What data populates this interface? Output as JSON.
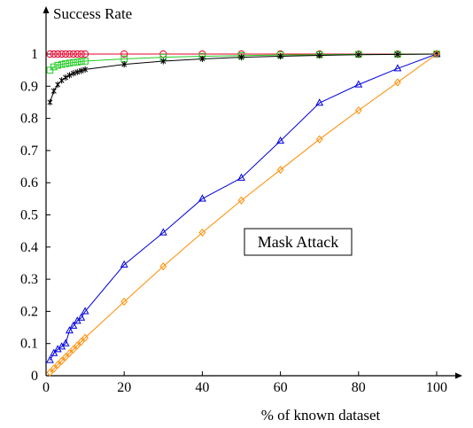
{
  "chart_data": {
    "type": "line",
    "title": "",
    "xlabel": "% of known dataset",
    "ylabel": "Success Rate",
    "xlim": [
      0,
      100
    ],
    "ylim": [
      0,
      1
    ],
    "x_ticks": [
      "0",
      "20",
      "40",
      "60",
      "80",
      "100"
    ],
    "y_ticks": [
      "0",
      "0.1",
      "0.2",
      "0.3",
      "0.4",
      "0.5",
      "0.6",
      "0.7",
      "0.8",
      "0.9",
      "1"
    ],
    "grid": false,
    "legend": "none",
    "annotation": "Mask Attack",
    "series": [
      {
        "marker": "circle",
        "color": "#e8002a",
        "x": [
          1,
          2,
          3,
          4,
          5,
          6,
          7,
          8,
          9,
          10,
          20,
          30,
          40,
          50,
          60,
          70,
          80,
          90,
          100
        ],
        "y": [
          1.0,
          1.0,
          1.0,
          1.0,
          1.0,
          1.0,
          1.0,
          1.0,
          1.0,
          1.0,
          1.0,
          1.0,
          1.0,
          1.0,
          1.0,
          1.0,
          1.0,
          1.0,
          1.0
        ]
      },
      {
        "marker": "square",
        "color": "#22cc22",
        "x": [
          1,
          2,
          3,
          4,
          5,
          6,
          7,
          8,
          9,
          10,
          20,
          30,
          40,
          50,
          60,
          70,
          80,
          90,
          100
        ],
        "y": [
          0.95,
          0.96,
          0.965,
          0.968,
          0.97,
          0.972,
          0.974,
          0.975,
          0.977,
          0.978,
          0.985,
          0.99,
          0.993,
          0.995,
          0.997,
          0.998,
          0.999,
          0.999,
          1.0
        ]
      },
      {
        "marker": "star",
        "color": "#000000",
        "x": [
          1,
          2,
          3,
          4,
          5,
          6,
          7,
          8,
          9,
          10,
          20,
          30,
          40,
          50,
          60,
          70,
          80,
          90,
          100
        ],
        "y": [
          0.85,
          0.885,
          0.905,
          0.918,
          0.927,
          0.934,
          0.94,
          0.944,
          0.948,
          0.952,
          0.968,
          0.978,
          0.985,
          0.99,
          0.993,
          0.996,
          0.998,
          0.999,
          1.0
        ]
      },
      {
        "marker": "triangle",
        "color": "#0000dd",
        "x": [
          1,
          2,
          3,
          4,
          5,
          6,
          7,
          8,
          9,
          10,
          20,
          30,
          40,
          50,
          60,
          70,
          80,
          90,
          100
        ],
        "y": [
          0.048,
          0.07,
          0.082,
          0.09,
          0.1,
          0.14,
          0.155,
          0.17,
          0.18,
          0.2,
          0.345,
          0.445,
          0.55,
          0.615,
          0.73,
          0.848,
          0.905,
          0.955,
          1.0
        ]
      },
      {
        "marker": "diamond",
        "color": "#ff8c00",
        "x": [
          1,
          2,
          3,
          4,
          5,
          6,
          7,
          8,
          9,
          10,
          20,
          30,
          40,
          50,
          60,
          70,
          80,
          90,
          100
        ],
        "y": [
          0.01,
          0.022,
          0.034,
          0.046,
          0.058,
          0.07,
          0.082,
          0.094,
          0.106,
          0.118,
          0.23,
          0.34,
          0.445,
          0.545,
          0.64,
          0.735,
          0.825,
          0.912,
          1.0
        ]
      }
    ]
  }
}
